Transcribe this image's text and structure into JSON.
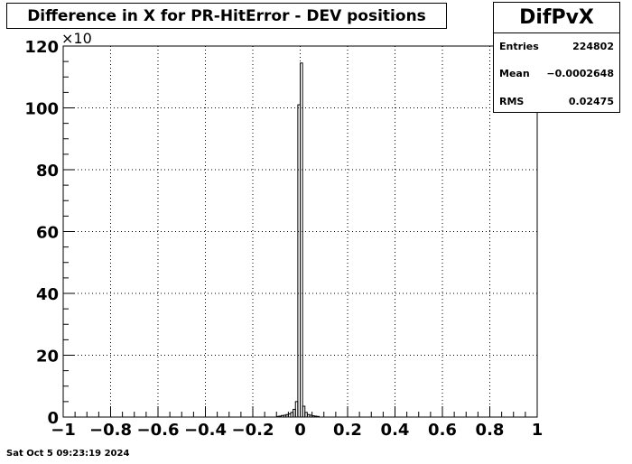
{
  "title": "Difference in X for PR-HitError - DEV positions",
  "stats": {
    "name": "DifPvX",
    "entries_label": "Entries",
    "entries_value": "224802",
    "mean_label": "Mean",
    "mean_value": "−0.0002648",
    "rms_label": "RMS",
    "rms_value": "0.02475"
  },
  "timestamp": "Sat Oct  5 09:23:19 2024",
  "chart_data": {
    "type": "bar",
    "title": "Difference in X for PR-HitError - DEV positions",
    "xlabel": "",
    "ylabel": "",
    "xlim": [
      -1,
      1
    ],
    "ylim": [
      0,
      120
    ],
    "y_multiplier_label": "×10",
    "grid": true,
    "x_ticks": [
      -1,
      -0.8,
      -0.6,
      -0.4,
      -0.2,
      0,
      0.2,
      0.4,
      0.6,
      0.8,
      1
    ],
    "x_tick_labels": [
      "−1",
      "−0.8",
      "−0.6",
      "−0.4",
      "−0.2",
      "0",
      "0.2",
      "0.4",
      "0.6",
      "0.8",
      "1"
    ],
    "y_ticks": [
      0,
      20,
      40,
      60,
      80,
      100,
      120
    ],
    "y_tick_labels": [
      "0",
      "20",
      "40",
      "60",
      "80",
      "100",
      "120"
    ],
    "bin_width": 0.01,
    "bins": [
      {
        "x0": -0.1,
        "value": 0.2
      },
      {
        "x0": -0.09,
        "value": 0.3
      },
      {
        "x0": -0.08,
        "value": 0.5
      },
      {
        "x0": -0.07,
        "value": 0.6
      },
      {
        "x0": -0.06,
        "value": 0.8
      },
      {
        "x0": -0.05,
        "value": 1.0
      },
      {
        "x0": -0.04,
        "value": 1.5
      },
      {
        "x0": -0.03,
        "value": 2.5
      },
      {
        "x0": -0.02,
        "value": 5.0
      },
      {
        "x0": -0.01,
        "value": 101
      },
      {
        "x0": 0.0,
        "value": 114.5
      },
      {
        "x0": 0.01,
        "value": 3.5
      },
      {
        "x0": 0.02,
        "value": 1.5
      },
      {
        "x0": 0.03,
        "value": 0.8
      },
      {
        "x0": 0.04,
        "value": 0.6
      },
      {
        "x0": 0.05,
        "value": 0.4
      },
      {
        "x0": 0.06,
        "value": 0.3
      },
      {
        "x0": 0.07,
        "value": 0.2
      }
    ]
  }
}
